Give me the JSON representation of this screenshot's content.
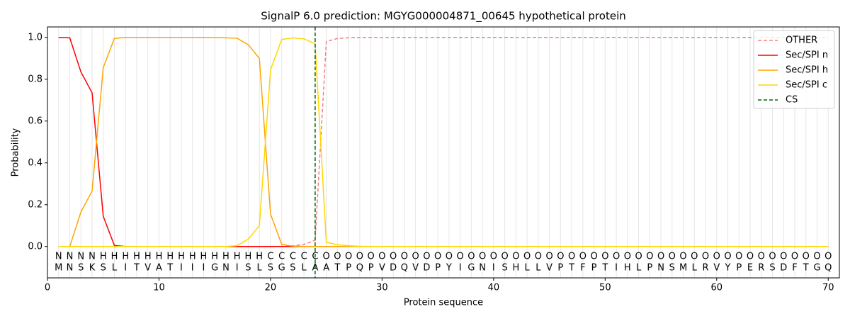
{
  "chart_data": {
    "type": "line",
    "title": "SignalP 6.0 prediction: MGYG000004871_00645 hypothetical protein",
    "xlabel": "Protein sequence",
    "ylabel": "Probability",
    "x": [
      1,
      2,
      3,
      4,
      5,
      6,
      7,
      8,
      9,
      10,
      11,
      12,
      13,
      14,
      15,
      16,
      17,
      18,
      19,
      20,
      21,
      22,
      23,
      24,
      25,
      26,
      27,
      28,
      29,
      30,
      31,
      32,
      33,
      34,
      35,
      36,
      37,
      38,
      39,
      40,
      41,
      42,
      43,
      44,
      45,
      46,
      47,
      48,
      49,
      50,
      51,
      52,
      53,
      54,
      55,
      56,
      57,
      58,
      59,
      60,
      61,
      62,
      63,
      64,
      65,
      66,
      67,
      68,
      69,
      70
    ],
    "residues": [
      "M",
      "N",
      "S",
      "K",
      "S",
      "L",
      "I",
      "T",
      "V",
      "A",
      "T",
      "I",
      "I",
      "I",
      "G",
      "N",
      "I",
      "S",
      "L",
      "S",
      "G",
      "S",
      "L",
      "A",
      "A",
      "T",
      "P",
      "Q",
      "P",
      "V",
      "D",
      "Q",
      "V",
      "D",
      "P",
      "Y",
      "I",
      "G",
      "N",
      "I",
      "S",
      "H",
      "L",
      "L",
      "V",
      "P",
      "T",
      "F",
      "P",
      "T",
      "I",
      "H",
      "L",
      "P",
      "N",
      "S",
      "M",
      "L",
      "R",
      "V",
      "Y",
      "P",
      "E",
      "R",
      "S",
      "D",
      "F",
      "T",
      "G",
      "Q"
    ],
    "regions": [
      "N",
      "N",
      "N",
      "N",
      "H",
      "H",
      "H",
      "H",
      "H",
      "H",
      "H",
      "H",
      "H",
      "H",
      "H",
      "H",
      "H",
      "H",
      "H",
      "C",
      "C",
      "C",
      "C",
      "C",
      "O",
      "O",
      "O",
      "O",
      "O",
      "O",
      "O",
      "O",
      "O",
      "O",
      "O",
      "O",
      "O",
      "O",
      "O",
      "O",
      "O",
      "O",
      "O",
      "O",
      "O",
      "O",
      "O",
      "O",
      "O",
      "O",
      "O",
      "O",
      "O",
      "O",
      "O",
      "O",
      "O",
      "O",
      "O",
      "O",
      "O",
      "O",
      "O",
      "O",
      "O",
      "O",
      "O",
      "O",
      "O",
      "O"
    ],
    "region_colors": {
      "N": "red",
      "H": "orange",
      "C": "gold",
      "O": "grey"
    },
    "series": [
      {
        "name": "OTHER",
        "color": "#f08080",
        "dash": true,
        "values": [
          0,
          0,
          0,
          0,
          0,
          0,
          0,
          0,
          0,
          0,
          0,
          0,
          0,
          0,
          0,
          0,
          0,
          0,
          0,
          0,
          0,
          0.003,
          0.01,
          0.03,
          0.98,
          0.995,
          0.998,
          1,
          1,
          1,
          1,
          1,
          1,
          1,
          1,
          1,
          1,
          1,
          1,
          1,
          1,
          1,
          1,
          1,
          1,
          1,
          1,
          1,
          1,
          1,
          1,
          1,
          1,
          1,
          1,
          1,
          1,
          1,
          1,
          1,
          1,
          1,
          1,
          1,
          1,
          1,
          1,
          1,
          1,
          1
        ]
      },
      {
        "name": "Sec/SPI n",
        "color": "red",
        "values": [
          1.0,
          0.998,
          0.835,
          0.735,
          0.145,
          0.005,
          0,
          0,
          0,
          0,
          0,
          0,
          0,
          0,
          0,
          0,
          0,
          0,
          0,
          0,
          0,
          0,
          0,
          0,
          0,
          0,
          0,
          0,
          0,
          0,
          0,
          0,
          0,
          0,
          0,
          0,
          0,
          0,
          0,
          0,
          0,
          0,
          0,
          0,
          0,
          0,
          0,
          0,
          0,
          0,
          0,
          0,
          0,
          0,
          0,
          0,
          0,
          0,
          0,
          0,
          0,
          0,
          0,
          0,
          0,
          0,
          0,
          0,
          0,
          0
        ]
      },
      {
        "name": "Sec/SPI h",
        "color": "orange",
        "values": [
          0,
          0,
          0.165,
          0.265,
          0.855,
          0.995,
          1,
          1,
          1,
          1,
          1,
          1,
          1,
          1,
          0.999,
          0.998,
          0.996,
          0.965,
          0.9,
          0.155,
          0.01,
          0.002,
          0,
          0,
          0,
          0,
          0,
          0,
          0,
          0,
          0,
          0,
          0,
          0,
          0,
          0,
          0,
          0,
          0,
          0,
          0,
          0,
          0,
          0,
          0,
          0,
          0,
          0,
          0,
          0,
          0,
          0,
          0,
          0,
          0,
          0,
          0,
          0,
          0,
          0,
          0,
          0,
          0,
          0,
          0,
          0,
          0,
          0,
          0,
          0
        ]
      },
      {
        "name": "Sec/SPI c",
        "color": "gold",
        "values": [
          0,
          0,
          0,
          0,
          0,
          0,
          0,
          0,
          0,
          0,
          0,
          0,
          0,
          0,
          0,
          0,
          0.004,
          0.035,
          0.1,
          0.845,
          0.99,
          0.998,
          0.993,
          0.97,
          0.02,
          0.008,
          0.004,
          0.001,
          0,
          0,
          0,
          0,
          0,
          0,
          0,
          0,
          0,
          0,
          0,
          0,
          0,
          0,
          0,
          0,
          0,
          0,
          0,
          0,
          0,
          0,
          0,
          0,
          0,
          0,
          0,
          0,
          0,
          0,
          0,
          0,
          0,
          0,
          0,
          0,
          0,
          0,
          0,
          0,
          0,
          0
        ]
      }
    ],
    "cs": {
      "name": "CS",
      "color": "darkgreen",
      "x": 24
    },
    "xlim": [
      0,
      71
    ],
    "ylim": [
      -0.15,
      1.05
    ],
    "xticks": [
      0,
      10,
      20,
      30,
      40,
      50,
      60,
      70
    ],
    "yticks": [
      {
        "value": 0,
        "label": "0.0"
      },
      0.2,
      0.4,
      0.6,
      0.8,
      {
        "value": 1,
        "label": "1.0"
      }
    ],
    "legend": "upper right",
    "grid": "x"
  }
}
